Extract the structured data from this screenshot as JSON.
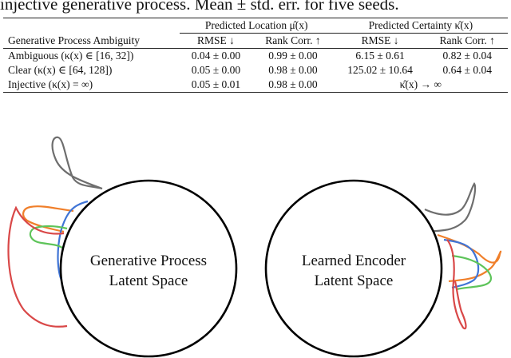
{
  "caption": "injective generative process. Mean ± std. err. for five seeds.",
  "table": {
    "group_headers": [
      "Predicted Location μ̂(x)",
      "Predicted Certainty κ̂(x)"
    ],
    "row_header": "Generative Process Ambiguity",
    "columns": [
      "RMSE ↓",
      "Rank Corr. ↑",
      "RMSE ↓",
      "Rank Corr. ↑"
    ],
    "rows": [
      {
        "label": "Ambiguous (κ(x) ∈ [16, 32])",
        "cells": [
          "0.04 ± 0.00",
          "0.99 ± 0.00",
          "6.15 ± 0.61",
          "0.82 ± 0.04"
        ]
      },
      {
        "label": "Clear (κ(x) ∈ [64, 128])",
        "cells": [
          "0.05 ± 0.00",
          "0.98 ± 0.00",
          "125.02 ± 10.64",
          "0.64 ± 0.04"
        ]
      },
      {
        "label": "Injective (κ(x) = ∞)",
        "cells": [
          "0.05 ± 0.01",
          "0.98 ± 0.00"
        ],
        "merged": "κ̂(x) → ∞"
      }
    ]
  },
  "diagram": {
    "left_label": [
      "Generative Process",
      "Latent Space"
    ],
    "right_label": [
      "Learned Encoder",
      "Latent Space"
    ],
    "colors": {
      "gray": "#6e6e6e",
      "orange": "#f07f2a",
      "blue": "#3f74d6",
      "green": "#5ec45a",
      "red": "#d94848",
      "circle": "#000000"
    }
  }
}
